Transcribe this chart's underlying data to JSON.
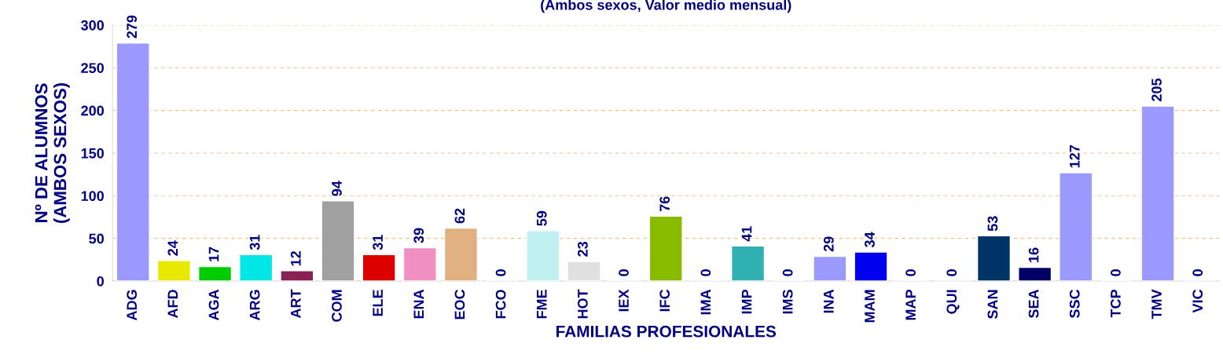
{
  "chart_data": {
    "type": "bar",
    "title": "(Ambos sexos, Valor medio mensual)",
    "xlabel": "FAMILIAS PROFESIONALES",
    "ylabel": "Nº DE ALUMNOS\n(AMBOS SEXOS)",
    "categories": [
      "ADG",
      "AFD",
      "AGA",
      "ARG",
      "ART",
      "COM",
      "ELE",
      "ENA",
      "EOC",
      "FCO",
      "FME",
      "HOT",
      "IEX",
      "IFC",
      "IMA",
      "IMP",
      "IMS",
      "INA",
      "MAM",
      "MAP",
      "QUI",
      "SAN",
      "SEA",
      "SSC",
      "TCP",
      "TMV",
      "VIC"
    ],
    "values": [
      279,
      24,
      17,
      31,
      12,
      94,
      31,
      39,
      62,
      0,
      59,
      23,
      0,
      76,
      0,
      41,
      0,
      29,
      34,
      0,
      0,
      53,
      16,
      127,
      0,
      205,
      0
    ],
    "colors": [
      "#9999ff",
      "#e8e800",
      "#00cc00",
      "#00e5e5",
      "#882255",
      "#a0a0a0",
      "#dd0000",
      "#f090c0",
      "#e0b080",
      null,
      "#c0f0f0",
      "#e0e0e0",
      null,
      "#88bb00",
      null,
      "#30b0b0",
      null,
      "#9999ff",
      "#0000ee",
      null,
      null,
      "#003366",
      "#000066",
      "#9999ff",
      null,
      "#9999ff",
      null
    ],
    "ylim": [
      0,
      300
    ],
    "yticks": [
      0,
      50,
      100,
      150,
      200,
      250,
      300
    ],
    "grid": "y",
    "data_labels": true
  }
}
